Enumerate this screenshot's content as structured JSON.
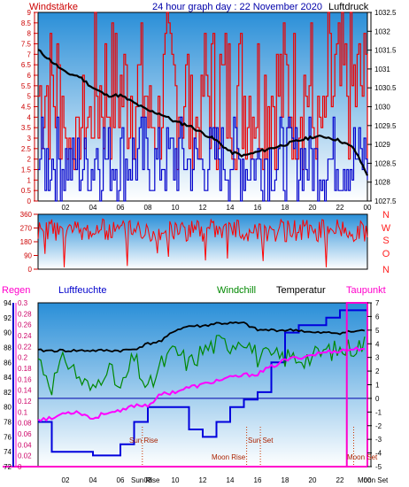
{
  "header": {
    "left": "Windstärke",
    "title": "24 hour graph day : 22 November 2020",
    "right": "Luftdruck"
  },
  "legend": {
    "regen": "Regen",
    "luftfeuchte": "Luftfeuchte",
    "windchill": "Windchill",
    "temperatur": "Temperatur",
    "taupunkt": "Taupunkt"
  },
  "x_ticks": [
    "02",
    "04",
    "06",
    "08",
    "10",
    "12",
    "14",
    "16",
    "18",
    "20",
    "22",
    "00"
  ],
  "wind_dir_labels": [
    "N",
    "W",
    "S",
    "O",
    "N"
  ],
  "annotations": {
    "sun_rise": "Sun Rise",
    "sun_set": "Sun Set",
    "moon_rise": "Moon Rise",
    "moon_set": "Moon Set",
    "sun_rise_axis": "Sun Rise",
    "moon_set_axis": "Moon Set"
  },
  "colors": {
    "wind_speed": "#ee0000",
    "wind_gust": "#0000cc",
    "pressure": "#000000",
    "wind_dir": "#ff0000",
    "rain": "#ff00cc",
    "humidity": "#0000dd",
    "windchill": "#008800",
    "temperature": "#000000",
    "dewpoint": "#ff00ff",
    "axis_left": "#cc0000",
    "axis_blue": "#0000aa"
  },
  "chart_data": [
    {
      "type": "line",
      "name": "wind_pressure",
      "y_left_ticks": [
        "0",
        "0.5",
        "1",
        "1.5",
        "2",
        "2.5",
        "3",
        "3.5",
        "4",
        "4.5",
        "5",
        "5.5",
        "6",
        "6.5",
        "7",
        "7.5",
        "8",
        "8.5",
        "9"
      ],
      "ylim_left": [
        0,
        9
      ],
      "y_right_ticks": [
        "1027.5",
        "1028",
        "1028.5",
        "1029",
        "1029.5",
        "1030",
        "1030.5",
        "1031",
        "1031.5",
        "1032",
        "1032.5"
      ],
      "ylim_right": [
        1027.5,
        1032.5
      ],
      "pressure": {
        "hours": [
          0,
          1,
          2,
          3,
          4,
          5,
          6,
          7,
          8,
          9,
          10,
          11,
          12,
          13,
          14,
          15,
          16,
          17,
          18,
          19,
          20,
          21,
          22,
          23,
          24
        ],
        "values": [
          1031.5,
          1031.2,
          1030.9,
          1030.8,
          1030.5,
          1030.3,
          1030.3,
          1030.1,
          1029.9,
          1029.8,
          1029.6,
          1029.5,
          1029.3,
          1029.1,
          1028.8,
          1028.7,
          1028.8,
          1028.9,
          1029.0,
          1029.1,
          1029.2,
          1029.2,
          1029.1,
          1028.9,
          1028.2
        ]
      },
      "wind_speed_max_per_hour": [
        9,
        9,
        4,
        6,
        9,
        9,
        9,
        9,
        6,
        9,
        9,
        6,
        9,
        9,
        9,
        9,
        9,
        9,
        9,
        9,
        5.5,
        9,
        9,
        9,
        5.5
      ],
      "wind_gust_max_per_hour": [
        4,
        4,
        3.5,
        3.5,
        4.5,
        4,
        4,
        4,
        3.5,
        4,
        4,
        3.5,
        4,
        4,
        4,
        3.5,
        4,
        4,
        4,
        4,
        3.5,
        4,
        4,
        4,
        3.5
      ]
    },
    {
      "type": "scatter",
      "name": "wind_direction",
      "y_ticks": [
        "0",
        "90",
        "180",
        "270",
        "360"
      ],
      "ylim": [
        0,
        360
      ],
      "typical_range": [
        180,
        330
      ]
    },
    {
      "type": "line",
      "name": "climate",
      "y_humidity_ticks": [
        "72",
        "74",
        "76",
        "78",
        "80",
        "82",
        "84",
        "86",
        "88",
        "90",
        "92",
        "94"
      ],
      "ylim_humidity": [
        72,
        94
      ],
      "y_rain_ticks": [
        "0",
        "0.02",
        "0.04",
        "0.06",
        "0.08",
        "0.1",
        "0.12",
        "0.14",
        "0.16",
        "0.18",
        "0.2",
        "0.22",
        "0.24",
        "0.26",
        "0.28",
        "0.3"
      ],
      "ylim_rain": [
        0,
        0.3
      ],
      "y_temp_ticks": [
        "-5",
        "-4",
        "-3",
        "-2",
        "-1",
        "0",
        "1",
        "2",
        "3",
        "4",
        "5",
        "6",
        "7"
      ],
      "ylim_temp": [
        -5,
        7
      ],
      "hours": [
        0,
        1,
        2,
        3,
        4,
        5,
        6,
        7,
        8,
        9,
        10,
        11,
        12,
        13,
        14,
        15,
        16,
        17,
        18,
        19,
        20,
        21,
        22,
        23,
        24
      ],
      "humidity": [
        78,
        74,
        74,
        74,
        73.5,
        73.5,
        75,
        78,
        80,
        80,
        80,
        77,
        76,
        78,
        80,
        81,
        82,
        86,
        90,
        91,
        91,
        92,
        93,
        93,
        93
      ],
      "temperature": [
        3.5,
        3.5,
        3.5,
        3.5,
        3.5,
        3.5,
        3.5,
        3.6,
        4.0,
        4.2,
        5.0,
        5.3,
        5.3,
        5.5,
        5.5,
        5.5,
        5.0,
        5.0,
        5.0,
        5.0,
        4.8,
        4.8,
        4.8,
        4.9,
        5.0
      ],
      "windchill": [
        3.0,
        1.0,
        3.0,
        1.5,
        0.5,
        2.5,
        0.5,
        3.0,
        0.5,
        2.5,
        3.5,
        2.5,
        3.5,
        4.0,
        4.0,
        4.5,
        3.0,
        3.0,
        3.0,
        3.0,
        3.0,
        3.5,
        3.5,
        3.8,
        4.0
      ],
      "dewpoint": [
        -1.5,
        -1.5,
        -1.0,
        -1.0,
        -1.5,
        -1.0,
        -1.0,
        -0.5,
        -0.5,
        0.3,
        0.5,
        0.8,
        1.0,
        1.3,
        1.5,
        1.7,
        1.8,
        2.3,
        2.8,
        3.0,
        3.2,
        3.4,
        3.5,
        3.6,
        3.7
      ],
      "rain_total": 0.3,
      "rain_start_hour": 22.5
    }
  ]
}
